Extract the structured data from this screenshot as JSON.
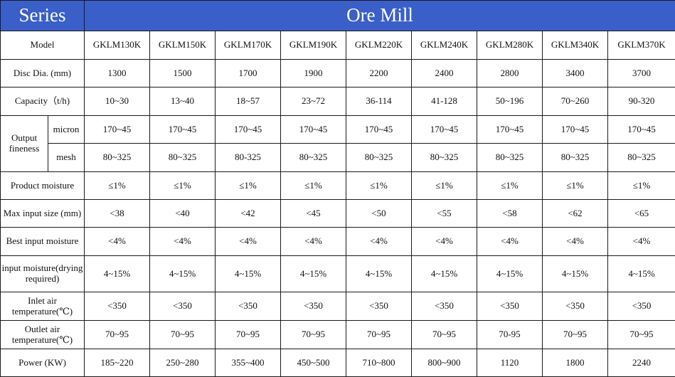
{
  "series_label": "Series",
  "title": "Ore Mill",
  "models": [
    "GKLM130K",
    "GKLM150K",
    "GKLM170K",
    "GKLM190K",
    "GKLM220K",
    "GKLM240K",
    "GKLM280K",
    "GKLM340K",
    "GKLM370K"
  ],
  "rows": {
    "model": {
      "label": "Model"
    },
    "disc": {
      "label": "Disc Dia. (mm)",
      "values": [
        "1300",
        "1500",
        "1700",
        "1900",
        "2200",
        "2400",
        "2800",
        "3400",
        "3700"
      ]
    },
    "capacity": {
      "label": "Capacity（t/h)",
      "values": [
        "10~30",
        "13~40",
        "18~57",
        "23~72",
        "36-114",
        "41-128",
        "50~196",
        "70~260",
        "90-320"
      ]
    },
    "fineness": {
      "label": "Output fineness",
      "micron": {
        "label": "micron",
        "values": [
          "170~45",
          "170~45",
          "170~45",
          "170~45",
          "170~45",
          "170~45",
          "170~45",
          "170~45",
          "170~45"
        ]
      },
      "mesh": {
        "label": "mesh",
        "values": [
          "80~325",
          "80~325",
          "80-325",
          "80~325",
          "80~325",
          "80~325",
          "80~325",
          "80~325",
          "80~325"
        ]
      }
    },
    "product_moisture": {
      "label": "Product moisture",
      "values": [
        "≤1%",
        "≤1%",
        "≤1%",
        "≤1%",
        "≤1%",
        "≤1%",
        "≤1%",
        "≤1%",
        "≤1%"
      ]
    },
    "max_input": {
      "label": "Max input size (mm)",
      "values": [
        "<38",
        "<40",
        "<42",
        "<45",
        "<50",
        "<55",
        "<58",
        "<62",
        "<65"
      ]
    },
    "best_moisture": {
      "label": "Best input moisture",
      "values": [
        "<4%",
        "<4%",
        "<4%",
        "<4%",
        "<4%",
        "<4%",
        "<4%",
        "<4%",
        "<4%"
      ]
    },
    "input_moisture": {
      "label": "input moisture(drying required)",
      "values": [
        "4~15%",
        "4~15%",
        "4~15%",
        "4~15%",
        "4~15%",
        "4~15%",
        "4~15%",
        "4~15%",
        "4~15%"
      ]
    },
    "inlet_air": {
      "label": "Inlet air temperature(℃)",
      "values": [
        "<350",
        "<350",
        "<350",
        "<350",
        "<350",
        "<350",
        "<350",
        "<350",
        "<350"
      ]
    },
    "outlet_air": {
      "label": "Outlet air temperature(℃)",
      "values": [
        "70~95",
        "70~95",
        "70~95",
        "70~95",
        "70~95",
        "70~95",
        "70-95",
        "70~95",
        "70~95"
      ]
    },
    "power": {
      "label": "Power (KW)",
      "values": [
        "185~220",
        "250~280",
        "355~400",
        "450~500",
        "710~800",
        "800~900",
        "1120",
        "1800",
        "2240"
      ]
    }
  }
}
